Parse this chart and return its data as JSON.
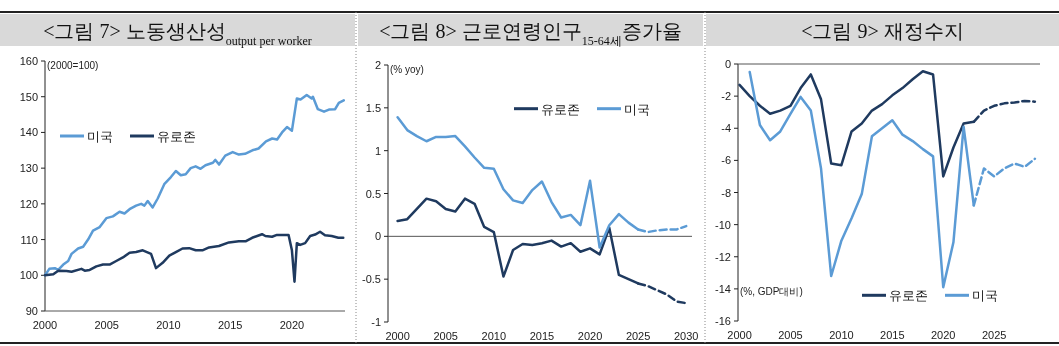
{
  "chart_data": [
    {
      "type": "line",
      "title": "<그림 7> 노동생산성$_{output per worker}$",
      "annotations": [
        "(2000=100)"
      ],
      "legend": "left",
      "xlim": [
        2000,
        2024.3
      ],
      "xticks": [
        2000,
        2005,
        2010,
        2015,
        2020
      ],
      "ylim": [
        90,
        160
      ],
      "yticks": [
        90,
        100,
        110,
        120,
        130,
        140,
        150,
        160
      ],
      "series": [
        {
          "name": "미국",
          "color": "#5b9bd5",
          "x": [
            2000,
            2000.35,
            2000.8,
            2001.07,
            2001.48,
            2001.88,
            2002.15,
            2002.68,
            2003.09,
            2003.49,
            2003.89,
            2004.43,
            2004.97,
            2005.5,
            2006.04,
            2006.44,
            2006.85,
            2007.38,
            2007.79,
            2008.05,
            2008.32,
            2008.72,
            2009.13,
            2009.66,
            2010.2,
            2010.6,
            2011.0,
            2011.4,
            2011.8,
            2012.2,
            2012.6,
            2013.0,
            2013.6,
            2013.8,
            2014.1,
            2014.6,
            2015.2,
            2015.7,
            2016.2,
            2016.8,
            2017.3,
            2017.9,
            2018.4,
            2018.8,
            2019.2,
            2019.6,
            2020.0,
            2020.4,
            2020.7,
            2021.2,
            2021.6,
            2021.7,
            2022.1,
            2022.6,
            2023.0,
            2023.5,
            2023.8,
            2024.2
          ],
          "values": [
            100,
            101.8,
            102,
            101.5,
            103,
            104,
            106,
            107.5,
            108,
            110,
            112.5,
            113.5,
            116,
            116.5,
            117.8,
            117.3,
            118.5,
            119.5,
            120,
            119.5,
            120.8,
            119,
            121.5,
            125.5,
            127.5,
            129.2,
            128,
            128.3,
            130,
            130.5,
            129.8,
            130.8,
            131.5,
            132.3,
            131,
            133.5,
            134.5,
            133.8,
            134,
            135,
            135.5,
            137.5,
            138.3,
            138,
            140,
            141.5,
            140.5,
            149.5,
            149.2,
            150.5,
            149.5,
            150,
            146.5,
            145.8,
            146.4,
            146.5,
            148.3,
            149
          ]
        },
        {
          "name": "유로존",
          "color": "#1f3a5f",
          "x": [
            2000,
            2000.67,
            2001.07,
            2001.74,
            2002.15,
            2002.95,
            2003.22,
            2003.62,
            2004.16,
            2004.7,
            2005.23,
            2005.77,
            2006.31,
            2006.85,
            2007.38,
            2007.92,
            2008.59,
            2008.99,
            2009.53,
            2010.07,
            2010.6,
            2011.14,
            2011.68,
            2012.21,
            2012.75,
            2013.29,
            2014.09,
            2014.9,
            2015.7,
            2016.24,
            2016.78,
            2017.58,
            2017.85,
            2018.39,
            2018.79,
            2019.46,
            2019.73,
            2020.0,
            2020.21,
            2020.4,
            2020.67,
            2021.07,
            2021.48,
            2021.88,
            2022.28,
            2022.68,
            2023.22,
            2023.76,
            2024.16
          ],
          "values": [
            100,
            100.3,
            101.3,
            101.2,
            101,
            101.8,
            101.3,
            101.5,
            102.5,
            103,
            103,
            104,
            105,
            106.3,
            106.5,
            107,
            106,
            102,
            103.5,
            105.5,
            106.5,
            107.5,
            107.6,
            107,
            107,
            107.8,
            108.2,
            109.2,
            109.5,
            109.5,
            110.5,
            111.5,
            111,
            110.8,
            111.3,
            111.3,
            111.3,
            107,
            98.2,
            109,
            108.5,
            109,
            111,
            111.4,
            112.2,
            111.2,
            111,
            110.5,
            110.5
          ]
        }
      ]
    },
    {
      "type": "line",
      "title": "<그림 8> 근로연령인구$_{15-64세}$증가율",
      "annotations": [
        "(% yoy)"
      ],
      "legend": "top right",
      "xlim": [
        1999,
        2030.6
      ],
      "xticks": [
        2000,
        2005,
        2010,
        2015,
        2020,
        2025,
        2030
      ],
      "ylim": [
        -1,
        2
      ],
      "yticks": [
        -1,
        -0.5,
        0,
        0.5,
        1,
        1.5,
        2
      ],
      "series": [
        {
          "name": "유로존",
          "color": "#1f3a5f",
          "x": [
            2000,
            2001,
            2002,
            2003,
            2004,
            2005,
            2006,
            2007,
            2008,
            2009,
            2010,
            2011,
            2012,
            2013,
            2014,
            2015,
            2016,
            2017,
            2018,
            2019,
            2020,
            2021,
            2022,
            2023,
            2024,
            2025
          ],
          "values": [
            0.18,
            0.2,
            0.32,
            0.44,
            0.41,
            0.32,
            0.29,
            0.44,
            0.38,
            0.11,
            0.05,
            -0.47,
            -0.16,
            -0.09,
            -0.1,
            -0.08,
            -0.05,
            -0.12,
            -0.08,
            -0.18,
            -0.14,
            -0.21,
            0.1,
            -0.45,
            -0.5,
            -0.55
          ]
        },
        {
          "name": "미국",
          "color": "#5b9bd5",
          "x": [
            2000,
            2001,
            2002,
            2003,
            2004,
            2005,
            2006,
            2007,
            2008,
            2009,
            2010,
            2011,
            2012,
            2013,
            2014,
            2015,
            2016,
            2017,
            2018,
            2019,
            2020,
            2021,
            2022,
            2023,
            2024,
            2025
          ],
          "values": [
            1.39,
            1.24,
            1.17,
            1.11,
            1.16,
            1.16,
            1.17,
            1.05,
            0.92,
            0.8,
            0.79,
            0.55,
            0.42,
            0.39,
            0.54,
            0.64,
            0.4,
            0.22,
            0.25,
            0.13,
            0.65,
            -0.13,
            0.13,
            0.26,
            0.16,
            0.08
          ]
        },
        {
          "color": "#1f3a5f",
          "line_style": "dashed",
          "x": [
            2025,
            2026,
            2027,
            2028,
            2029,
            2030
          ],
          "values": [
            -0.55,
            -0.58,
            -0.63,
            -0.68,
            -0.76,
            -0.78
          ]
        },
        {
          "color": "#5b9bd5",
          "line_style": "dashed",
          "x": [
            2025,
            2026,
            2027,
            2028,
            2029,
            2030
          ],
          "values": [
            0.08,
            0.05,
            0.07,
            0.08,
            0.08,
            0.12
          ]
        }
      ]
    },
    {
      "type": "line",
      "title": "<그림 9> 재정수지",
      "annotations": [
        "(%, GDP대비)"
      ],
      "legend": "bottom right",
      "xlim": [
        1999.85,
        2029.5
      ],
      "xticks": [
        2000,
        2005,
        2010,
        2015,
        2020,
        2025
      ],
      "ylim": [
        -16,
        0
      ],
      "yticks": [
        -16,
        -14,
        -12,
        -10,
        -8,
        -6,
        -4,
        -2,
        0
      ],
      "series": [
        {
          "name": "유로존",
          "color": "#1f3a5f",
          "x": [
            2000,
            2001,
            2002,
            2003,
            2004,
            2005,
            2006,
            2007,
            2008,
            2009,
            2010,
            2011,
            2012,
            2013,
            2014,
            2015,
            2016,
            2017,
            2018,
            2019,
            2020,
            2021,
            2022,
            2023
          ],
          "values": [
            -1.3,
            -2,
            -2.6,
            -3.1,
            -2.9,
            -2.6,
            -1.5,
            -0.65,
            -2.2,
            -6.2,
            -6.3,
            -4.2,
            -3.7,
            -2.9,
            -2.5,
            -1.95,
            -1.5,
            -0.95,
            -0.45,
            -0.65,
            -7,
            -5.2,
            -3.7,
            -3.6
          ]
        },
        {
          "name": "미국",
          "color": "#5b9bd5",
          "x": [
            2001,
            2002,
            2003,
            2004,
            2005,
            2006,
            2007,
            2008,
            2009,
            2010,
            2011,
            2012,
            2013,
            2014,
            2015,
            2016,
            2017,
            2018,
            2019,
            2020,
            2021,
            2022,
            2023
          ],
          "values": [
            -0.5,
            -3.8,
            -4.75,
            -4.2,
            -3.1,
            -2.05,
            -2.9,
            -6.5,
            -13.2,
            -11,
            -9.6,
            -8.1,
            -4.5,
            -4,
            -3.5,
            -4.4,
            -4.8,
            -5.3,
            -5.75,
            -13.9,
            -11.1,
            -3.9,
            -8.8
          ]
        },
        {
          "color": "#1f3a5f",
          "line_style": "dashed",
          "x": [
            2023,
            2024,
            2025,
            2026,
            2027,
            2028,
            2029
          ],
          "values": [
            -3.6,
            -2.9,
            -2.6,
            -2.45,
            -2.4,
            -2.3,
            -2.35
          ]
        },
        {
          "color": "#5b9bd5",
          "line_style": "dashed",
          "x": [
            2023,
            2024,
            2025,
            2026,
            2027,
            2028,
            2029
          ],
          "values": [
            -8.8,
            -6.5,
            -7,
            -6.5,
            -6.2,
            -6.4,
            -5.9
          ]
        }
      ]
    }
  ]
}
